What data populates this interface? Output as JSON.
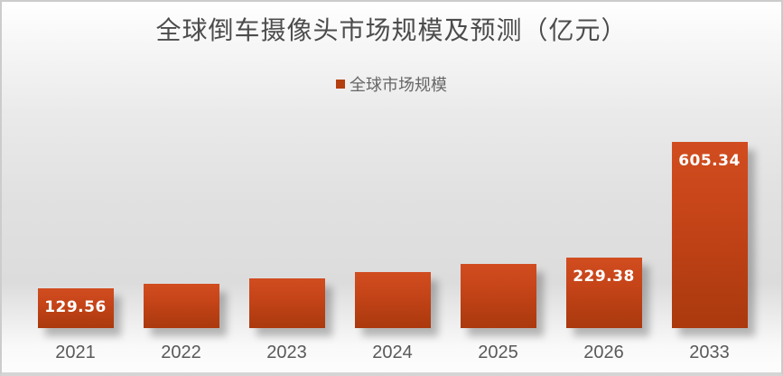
{
  "title": "全球倒车摄像头市场规模及预测（亿元）",
  "legend": {
    "label": "全球市场规模",
    "swatch_color": "#b43e10"
  },
  "colors": {
    "bar_gradient_top": "#d14d20",
    "bar_gradient_bottom": "#ab390e",
    "title_text": "#4c4c4c",
    "axis_text": "#595959",
    "data_label_text": "#ffffff",
    "background_mid": "#dcdcdc",
    "frame_border": "#cccccc"
  },
  "chart_data": {
    "type": "bar",
    "title": "全球倒车摄像头市场规模及预测（亿元）",
    "series_name": "全球市场规模",
    "unit": "亿元",
    "categories": [
      "2021",
      "2022",
      "2023",
      "2024",
      "2025",
      "2026",
      "2033"
    ],
    "values": [
      129.56,
      144,
      162,
      183,
      208,
      229.38,
      605.34
    ],
    "data_labels_shown": [
      "129.56",
      null,
      null,
      null,
      null,
      "229.38",
      "605.34"
    ],
    "unlabeled_values_are_estimates": true,
    "xlabel": "",
    "ylabel": "",
    "ylim": [
      0,
      650
    ],
    "grid": false,
    "axes_visible": false,
    "legend_position": "top-center"
  }
}
